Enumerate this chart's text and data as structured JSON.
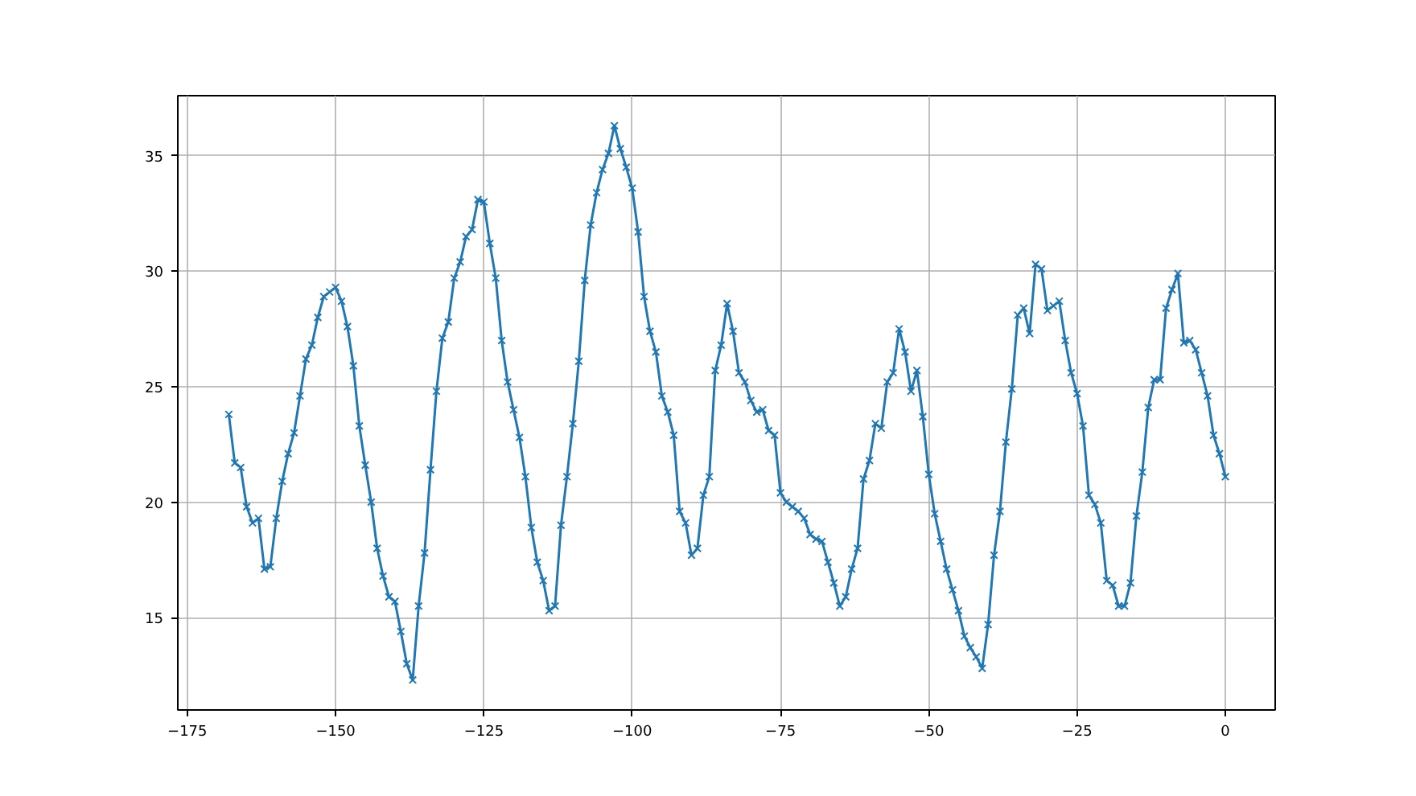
{
  "chart_data": {
    "type": "line",
    "marker": "cross",
    "grid": true,
    "x": [
      -168,
      -167,
      -166,
      -165,
      -164,
      -163,
      -162,
      -161,
      -160,
      -159,
      -158,
      -157,
      -156,
      -155,
      -154,
      -153,
      -152,
      -151,
      -150,
      -149,
      -148,
      -147,
      -146,
      -145,
      -144,
      -143,
      -142,
      -141,
      -140,
      -139,
      -138,
      -137,
      -136,
      -135,
      -134,
      -133,
      -132,
      -131,
      -130,
      -129,
      -128,
      -127,
      -126,
      -125,
      -124,
      -123,
      -122,
      -121,
      -120,
      -119,
      -118,
      -117,
      -116,
      -115,
      -114,
      -113,
      -112,
      -111,
      -110,
      -109,
      -108,
      -107,
      -106,
      -105,
      -104,
      -103,
      -102,
      -101,
      -100,
      -99,
      -98,
      -97,
      -96,
      -95,
      -94,
      -93,
      -92,
      -91,
      -90,
      -89,
      -88,
      -87,
      -86,
      -85,
      -84,
      -83,
      -82,
      -81,
      -80,
      -79,
      -78,
      -77,
      -76,
      -75,
      -74,
      -73,
      -72,
      -71,
      -70,
      -69,
      -68,
      -67,
      -66,
      -65,
      -64,
      -63,
      -62,
      -61,
      -60,
      -59,
      -58,
      -57,
      -56,
      -55,
      -54,
      -53,
      -52,
      -51,
      -50,
      -49,
      -48,
      -47,
      -46,
      -45,
      -44,
      -43,
      -42,
      -41,
      -40,
      -39,
      -38,
      -37,
      -36,
      -35,
      -34,
      -33,
      -32,
      -31,
      -30,
      -29,
      -28,
      -27,
      -26,
      -25,
      -24,
      -23,
      -22,
      -21,
      -20,
      -19,
      -18,
      -17,
      -16,
      -15,
      -14,
      -13,
      -12,
      -11,
      -10,
      -9,
      -8,
      -7,
      -6,
      -5,
      -4,
      -3,
      -2,
      -1,
      0
    ],
    "series": [
      {
        "color": "#1f77b4",
        "values": [
          23.8,
          21.7,
          21.5,
          19.8,
          19.1,
          19.3,
          17.1,
          17.2,
          19.3,
          20.9,
          22.1,
          23.0,
          24.6,
          26.2,
          26.8,
          28.0,
          28.9,
          29.1,
          29.3,
          28.7,
          27.6,
          25.9,
          23.3,
          21.6,
          20.0,
          18.0,
          16.8,
          15.9,
          15.7,
          14.4,
          13.0,
          12.3,
          15.5,
          17.8,
          21.4,
          24.8,
          27.1,
          27.8,
          29.7,
          30.4,
          31.5,
          31.8,
          33.1,
          33.0,
          31.2,
          29.7,
          27.0,
          25.2,
          24.0,
          22.8,
          21.1,
          18.9,
          17.4,
          16.6,
          15.3,
          15.5,
          19.0,
          21.1,
          23.4,
          26.1,
          29.6,
          32.0,
          33.4,
          34.4,
          35.1,
          36.3,
          35.3,
          34.5,
          33.6,
          31.7,
          28.9,
          27.4,
          26.5,
          24.6,
          23.9,
          22.9,
          19.6,
          19.1,
          17.7,
          18.0,
          20.3,
          21.1,
          25.7,
          26.8,
          28.6,
          27.4,
          25.6,
          25.2,
          24.4,
          23.9,
          24.0,
          23.1,
          22.9,
          20.4,
          20.0,
          19.8,
          19.6,
          19.3,
          18.6,
          18.4,
          18.3,
          17.4,
          16.5,
          15.5,
          15.9,
          17.1,
          18.0,
          21.0,
          21.8,
          23.4,
          23.2,
          25.2,
          25.6,
          27.5,
          26.5,
          24.8,
          25.7,
          23.7,
          21.2,
          19.5,
          18.3,
          17.1,
          16.2,
          15.3,
          14.2,
          13.7,
          13.3,
          12.8,
          14.7,
          17.7,
          19.6,
          22.6,
          24.9,
          28.1,
          28.4,
          27.3,
          30.3,
          30.1,
          28.3,
          28.5,
          28.7,
          27.0,
          25.6,
          24.7,
          23.3,
          20.3,
          19.9,
          19.1,
          16.6,
          16.4,
          15.5,
          15.5,
          16.5,
          19.4,
          21.3,
          24.1,
          25.3,
          25.3,
          28.4,
          29.2,
          29.9,
          26.9,
          27.0,
          26.6,
          25.6,
          24.6,
          22.9,
          22.1,
          21.1
        ]
      }
    ],
    "xlim": [
      -176.6,
      8.4
    ],
    "ylim": [
      11.0,
      37.6
    ],
    "xticks": [
      -175,
      -150,
      -125,
      -100,
      -75,
      -50,
      -25,
      0
    ],
    "yticks": [
      15,
      20,
      25,
      30,
      35
    ]
  }
}
